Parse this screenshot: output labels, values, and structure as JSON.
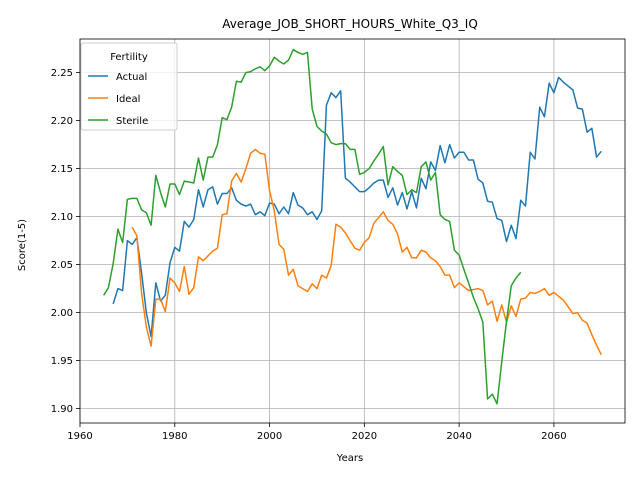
{
  "chart_data": {
    "type": "line",
    "title": "Average_JOB_SHORT_HOURS_White_Q3_IQ",
    "xlabel": "Years",
    "ylabel": "Score(1-5)",
    "xlim": [
      1960,
      2075
    ],
    "ylim": [
      1.885,
      2.285
    ],
    "xticks": [
      1960,
      1980,
      2000,
      2020,
      2040,
      2060
    ],
    "yticks": [
      1.9,
      1.95,
      2.0,
      2.05,
      2.1,
      2.15,
      2.2,
      2.25
    ],
    "ytick_labels": [
      "1.90",
      "1.95",
      "2.00",
      "2.05",
      "2.10",
      "2.15",
      "2.20",
      "2.25"
    ],
    "grid": true,
    "legend": {
      "title": "Fertility",
      "placement": "upper-left"
    },
    "series": [
      {
        "name": "Actual",
        "color": "#1f77b4",
        "points": [
          [
            1967,
            2.009
          ],
          [
            1968,
            2.025
          ],
          [
            1969,
            2.023
          ],
          [
            1970,
            2.075
          ],
          [
            1971,
            2.071
          ],
          [
            1972,
            2.078
          ],
          [
            1973,
            2.041
          ],
          [
            1974,
            2.0
          ],
          [
            1975,
            1.975
          ],
          [
            1976,
            2.031
          ],
          [
            1977,
            2.012
          ],
          [
            1978,
            2.018
          ],
          [
            1979,
            2.052
          ],
          [
            1980,
            2.068
          ],
          [
            1981,
            2.064
          ],
          [
            1982,
            2.095
          ],
          [
            1983,
            2.089
          ],
          [
            1984,
            2.097
          ],
          [
            1985,
            2.128
          ],
          [
            1986,
            2.11
          ],
          [
            1987,
            2.128
          ],
          [
            1988,
            2.131
          ],
          [
            1989,
            2.113
          ],
          [
            1990,
            2.124
          ],
          [
            1991,
            2.124
          ],
          [
            1992,
            2.13
          ],
          [
            1993,
            2.117
          ],
          [
            1994,
            2.113
          ],
          [
            1995,
            2.111
          ],
          [
            1996,
            2.113
          ],
          [
            1997,
            2.102
          ],
          [
            1998,
            2.105
          ],
          [
            1999,
            2.101
          ],
          [
            2000,
            2.114
          ],
          [
            2001,
            2.113
          ],
          [
            2002,
            2.103
          ],
          [
            2003,
            2.11
          ],
          [
            2004,
            2.103
          ],
          [
            2005,
            2.125
          ],
          [
            2006,
            2.112
          ],
          [
            2007,
            2.109
          ],
          [
            2008,
            2.102
          ],
          [
            2009,
            2.105
          ],
          [
            2010,
            2.097
          ],
          [
            2011,
            2.106
          ],
          [
            2012,
            2.216
          ],
          [
            2013,
            2.229
          ],
          [
            2014,
            2.224
          ],
          [
            2015,
            2.231
          ],
          [
            2016,
            2.14
          ],
          [
            2017,
            2.136
          ],
          [
            2018,
            2.131
          ],
          [
            2019,
            2.126
          ],
          [
            2020,
            2.126
          ],
          [
            2021,
            2.13
          ],
          [
            2022,
            2.135
          ],
          [
            2023,
            2.138
          ],
          [
            2024,
            2.138
          ],
          [
            2025,
            2.12
          ],
          [
            2026,
            2.13
          ],
          [
            2027,
            2.112
          ],
          [
            2028,
            2.125
          ],
          [
            2029,
            2.108
          ],
          [
            2030,
            2.126
          ],
          [
            2031,
            2.109
          ],
          [
            2032,
            2.14
          ],
          [
            2033,
            2.129
          ],
          [
            2034,
            2.157
          ],
          [
            2035,
            2.148
          ],
          [
            2036,
            2.174
          ],
          [
            2037,
            2.156
          ],
          [
            2038,
            2.175
          ],
          [
            2039,
            2.161
          ],
          [
            2040,
            2.167
          ],
          [
            2041,
            2.167
          ],
          [
            2042,
            2.159
          ],
          [
            2043,
            2.159
          ],
          [
            2044,
            2.139
          ],
          [
            2045,
            2.135
          ],
          [
            2046,
            2.116
          ],
          [
            2047,
            2.115
          ],
          [
            2048,
            2.098
          ],
          [
            2049,
            2.096
          ],
          [
            2050,
            2.074
          ],
          [
            2051,
            2.091
          ],
          [
            2052,
            2.077
          ],
          [
            2053,
            2.117
          ],
          [
            2054,
            2.111
          ],
          [
            2055,
            2.167
          ],
          [
            2056,
            2.16
          ],
          [
            2057,
            2.214
          ],
          [
            2058,
            2.204
          ],
          [
            2059,
            2.239
          ],
          [
            2060,
            2.229
          ],
          [
            2061,
            2.245
          ],
          [
            2062,
            2.24
          ],
          [
            2063,
            2.236
          ],
          [
            2064,
            2.232
          ],
          [
            2065,
            2.213
          ],
          [
            2066,
            2.212
          ],
          [
            2067,
            2.188
          ],
          [
            2068,
            2.192
          ],
          [
            2069,
            2.162
          ],
          [
            2070,
            2.168
          ]
        ]
      },
      {
        "name": "Ideal",
        "color": "#ff7f0e",
        "points": [
          [
            1971,
            2.089
          ],
          [
            1972,
            2.08
          ],
          [
            1973,
            2.02
          ],
          [
            1974,
            1.985
          ],
          [
            1975,
            1.965
          ],
          [
            1976,
            2.014
          ],
          [
            1977,
            2.014
          ],
          [
            1978,
            2.001
          ],
          [
            1979,
            2.036
          ],
          [
            1980,
            2.031
          ],
          [
            1981,
            2.022
          ],
          [
            1982,
            2.048
          ],
          [
            1983,
            2.019
          ],
          [
            1984,
            2.026
          ],
          [
            1985,
            2.058
          ],
          [
            1986,
            2.054
          ],
          [
            1987,
            2.059
          ],
          [
            1988,
            2.064
          ],
          [
            1989,
            2.067
          ],
          [
            1990,
            2.102
          ],
          [
            1991,
            2.103
          ],
          [
            1992,
            2.137
          ],
          [
            1993,
            2.145
          ],
          [
            1994,
            2.136
          ],
          [
            1995,
            2.15
          ],
          [
            1996,
            2.166
          ],
          [
            1997,
            2.17
          ],
          [
            1998,
            2.166
          ],
          [
            1999,
            2.165
          ],
          [
            2000,
            2.127
          ],
          [
            2001,
            2.106
          ],
          [
            2002,
            2.071
          ],
          [
            2003,
            2.066
          ],
          [
            2004,
            2.039
          ],
          [
            2005,
            2.045
          ],
          [
            2006,
            2.028
          ],
          [
            2007,
            2.025
          ],
          [
            2008,
            2.022
          ],
          [
            2009,
            2.03
          ],
          [
            2010,
            2.025
          ],
          [
            2011,
            2.039
          ],
          [
            2012,
            2.036
          ],
          [
            2013,
            2.049
          ],
          [
            2014,
            2.092
          ],
          [
            2015,
            2.089
          ],
          [
            2016,
            2.083
          ],
          [
            2017,
            2.075
          ],
          [
            2018,
            2.067
          ],
          [
            2019,
            2.065
          ],
          [
            2020,
            2.073
          ],
          [
            2021,
            2.078
          ],
          [
            2022,
            2.093
          ],
          [
            2023,
            2.099
          ],
          [
            2024,
            2.105
          ],
          [
            2025,
            2.096
          ],
          [
            2026,
            2.092
          ],
          [
            2027,
            2.082
          ],
          [
            2028,
            2.063
          ],
          [
            2029,
            2.068
          ],
          [
            2030,
            2.057
          ],
          [
            2031,
            2.057
          ],
          [
            2032,
            2.065
          ],
          [
            2033,
            2.063
          ],
          [
            2034,
            2.057
          ],
          [
            2035,
            2.054
          ],
          [
            2036,
            2.048
          ],
          [
            2037,
            2.039
          ],
          [
            2038,
            2.039
          ],
          [
            2039,
            2.026
          ],
          [
            2040,
            2.031
          ],
          [
            2041,
            2.027
          ],
          [
            2042,
            2.023
          ],
          [
            2043,
            2.024
          ],
          [
            2044,
            2.025
          ],
          [
            2045,
            2.023
          ],
          [
            2046,
            2.008
          ],
          [
            2047,
            2.012
          ],
          [
            2048,
            1.991
          ],
          [
            2049,
            2.008
          ],
          [
            2050,
            1.99
          ],
          [
            2051,
            2.007
          ],
          [
            2052,
            1.996
          ],
          [
            2053,
            2.014
          ],
          [
            2054,
            2.015
          ],
          [
            2055,
            2.021
          ],
          [
            2056,
            2.02
          ],
          [
            2057,
            2.022
          ],
          [
            2058,
            2.025
          ],
          [
            2059,
            2.018
          ],
          [
            2060,
            2.021
          ],
          [
            2061,
            2.017
          ],
          [
            2062,
            2.013
          ],
          [
            2063,
            2.006
          ],
          [
            2064,
            1.999
          ],
          [
            2065,
            2.0
          ],
          [
            2066,
            1.992
          ],
          [
            2067,
            1.989
          ],
          [
            2068,
            1.977
          ],
          [
            2069,
            1.966
          ],
          [
            2070,
            1.956
          ]
        ]
      },
      {
        "name": "Sterile",
        "color": "#2ca02c",
        "points": [
          [
            1965,
            2.018
          ],
          [
            1966,
            2.026
          ],
          [
            1967,
            2.051
          ],
          [
            1968,
            2.087
          ],
          [
            1969,
            2.073
          ],
          [
            1970,
            2.118
          ],
          [
            1971,
            2.119
          ],
          [
            1972,
            2.119
          ],
          [
            1973,
            2.107
          ],
          [
            1974,
            2.104
          ],
          [
            1975,
            2.091
          ],
          [
            1976,
            2.143
          ],
          [
            1977,
            2.125
          ],
          [
            1978,
            2.11
          ],
          [
            1979,
            2.134
          ],
          [
            1980,
            2.134
          ],
          [
            1981,
            2.123
          ],
          [
            1982,
            2.137
          ],
          [
            1983,
            2.136
          ],
          [
            1984,
            2.135
          ],
          [
            1985,
            2.161
          ],
          [
            1986,
            2.138
          ],
          [
            1987,
            2.162
          ],
          [
            1988,
            2.162
          ],
          [
            1989,
            2.175
          ],
          [
            1990,
            2.203
          ],
          [
            1991,
            2.201
          ],
          [
            1992,
            2.214
          ],
          [
            1993,
            2.241
          ],
          [
            1994,
            2.24
          ],
          [
            1995,
            2.25
          ],
          [
            1996,
            2.251
          ],
          [
            1997,
            2.254
          ],
          [
            1998,
            2.256
          ],
          [
            1999,
            2.252
          ],
          [
            2000,
            2.257
          ],
          [
            2001,
            2.266
          ],
          [
            2002,
            2.262
          ],
          [
            2003,
            2.259
          ],
          [
            2004,
            2.263
          ],
          [
            2005,
            2.274
          ],
          [
            2006,
            2.271
          ],
          [
            2007,
            2.269
          ],
          [
            2008,
            2.271
          ],
          [
            2009,
            2.212
          ],
          [
            2010,
            2.194
          ],
          [
            2011,
            2.189
          ],
          [
            2012,
            2.186
          ],
          [
            2013,
            2.177
          ],
          [
            2014,
            2.175
          ],
          [
            2015,
            2.176
          ],
          [
            2016,
            2.176
          ],
          [
            2017,
            2.17
          ],
          [
            2018,
            2.17
          ],
          [
            2019,
            2.144
          ],
          [
            2020,
            2.146
          ],
          [
            2021,
            2.15
          ],
          [
            2022,
            2.158
          ],
          [
            2023,
            2.165
          ],
          [
            2024,
            2.173
          ],
          [
            2025,
            2.133
          ],
          [
            2026,
            2.152
          ],
          [
            2027,
            2.147
          ],
          [
            2028,
            2.143
          ],
          [
            2029,
            2.123
          ],
          [
            2030,
            2.128
          ],
          [
            2031,
            2.125
          ],
          [
            2032,
            2.152
          ],
          [
            2033,
            2.157
          ],
          [
            2034,
            2.138
          ],
          [
            2035,
            2.146
          ],
          [
            2036,
            2.102
          ],
          [
            2037,
            2.097
          ],
          [
            2038,
            2.095
          ],
          [
            2039,
            2.065
          ],
          [
            2040,
            2.06
          ],
          [
            2041,
            2.045
          ],
          [
            2042,
            2.031
          ],
          [
            2043,
            2.016
          ],
          [
            2044,
            2.004
          ],
          [
            2045,
            1.99
          ],
          [
            2046,
            1.91
          ],
          [
            2047,
            1.915
          ],
          [
            2048,
            1.905
          ],
          [
            2049,
            1.949
          ],
          [
            2050,
            1.991
          ],
          [
            2051,
            2.028
          ],
          [
            2052,
            2.036
          ],
          [
            2053,
            2.042
          ]
        ]
      }
    ]
  }
}
